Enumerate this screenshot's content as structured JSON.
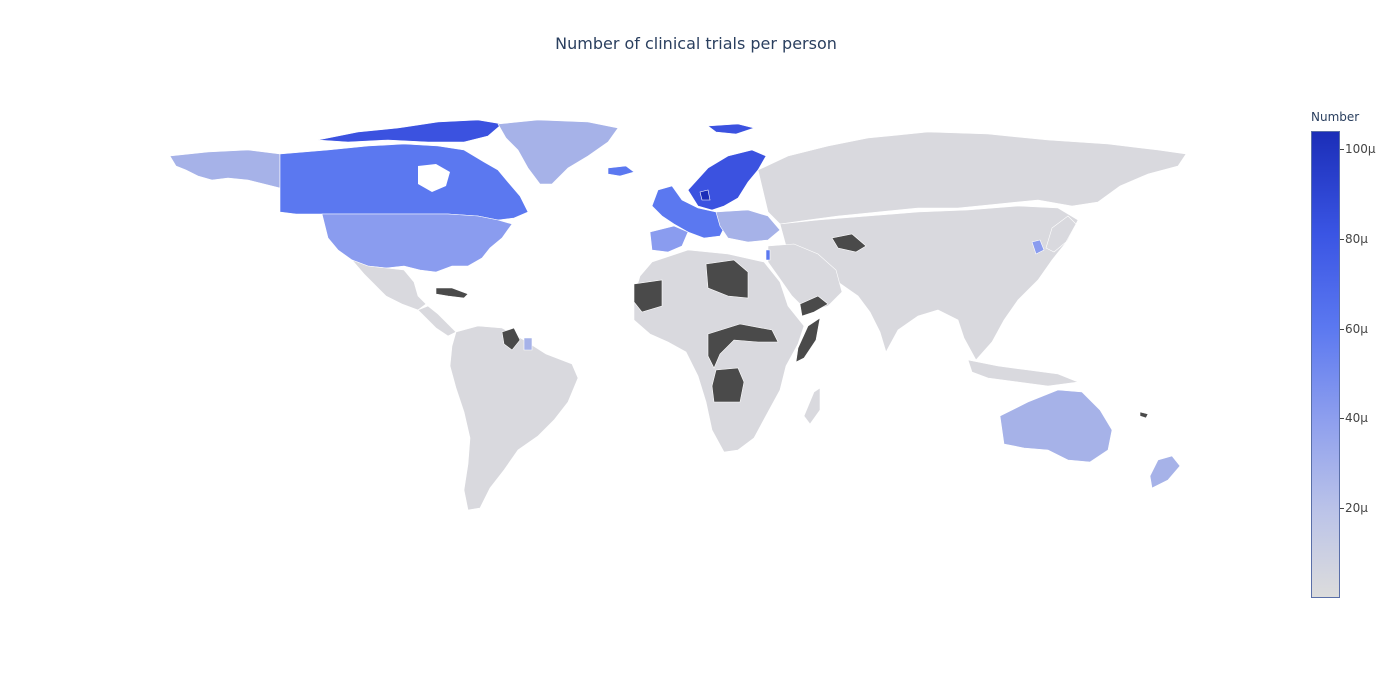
{
  "title": "Number of clinical trials per person",
  "colorbar": {
    "title": "Number",
    "ticks": [
      {
        "label": "100μ",
        "value": 100
      },
      {
        "label": "80μ",
        "value": 80
      },
      {
        "label": "60μ",
        "value": 60
      },
      {
        "label": "40μ",
        "value": 40
      },
      {
        "label": "20μ",
        "value": 20
      }
    ],
    "range": [
      0,
      104
    ]
  },
  "colors": {
    "no_data": "#4a4a4a",
    "low": "#d9d9de",
    "light": "#a6b2e8",
    "mid": "#8a9cef",
    "high": "#5b78f0",
    "very_high": "#3b52e0",
    "max": "#1b2eb8"
  },
  "regions": [
    {
      "name": "Alaska (USA)",
      "level": "light"
    },
    {
      "name": "Canada",
      "level": "high"
    },
    {
      "name": "Canadian Arctic",
      "level": "very_high"
    },
    {
      "name": "Greenland",
      "level": "light"
    },
    {
      "name": "United States",
      "level": "mid"
    },
    {
      "name": "Mexico",
      "level": "low"
    },
    {
      "name": "Central America",
      "level": "low"
    },
    {
      "name": "Cuba",
      "level": "no_data"
    },
    {
      "name": "South America",
      "level": "low"
    },
    {
      "name": "Venezuela",
      "level": "no_data"
    },
    {
      "name": "Suriname",
      "level": "light"
    },
    {
      "name": "Iceland",
      "level": "high"
    },
    {
      "name": "Svalbard",
      "level": "very_high"
    },
    {
      "name": "Scandinavia",
      "level": "very_high"
    },
    {
      "name": "Denmark",
      "level": "max"
    },
    {
      "name": "Western Europe",
      "level": "high"
    },
    {
      "name": "Iberia",
      "level": "mid"
    },
    {
      "name": "Eastern Europe",
      "level": "light"
    },
    {
      "name": "Russia",
      "level": "low"
    },
    {
      "name": "Turkmenistan",
      "level": "no_data"
    },
    {
      "name": "Middle East",
      "level": "low"
    },
    {
      "name": "Yemen",
      "level": "no_data"
    },
    {
      "name": "Israel",
      "level": "high"
    },
    {
      "name": "Mauritania",
      "level": "no_data"
    },
    {
      "name": "Libya",
      "level": "no_data"
    },
    {
      "name": "Central African band",
      "level": "no_data"
    },
    {
      "name": "Somalia",
      "level": "no_data"
    },
    {
      "name": "Angola",
      "level": "no_data"
    },
    {
      "name": "Africa",
      "level": "low"
    },
    {
      "name": "Madagascar",
      "level": "low"
    },
    {
      "name": "South Korea",
      "level": "mid"
    },
    {
      "name": "Japan",
      "level": "low"
    },
    {
      "name": "Asia",
      "level": "low"
    },
    {
      "name": "Indonesia",
      "level": "low"
    },
    {
      "name": "Australia",
      "level": "light"
    },
    {
      "name": "New Zealand",
      "level": "light"
    },
    {
      "name": "New Caledonia",
      "level": "no_data"
    }
  ]
}
